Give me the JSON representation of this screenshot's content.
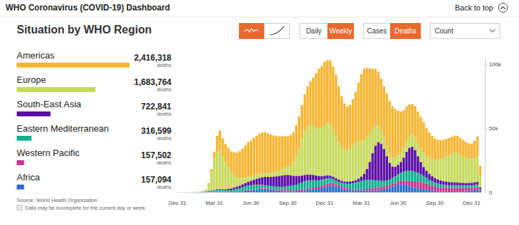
{
  "page": {
    "header": "WHO Coronavirus (COVID-19) Dashboard",
    "back_link": "Back to top",
    "toggles": [
      [
        {
          "label": "Daily"
        },
        {
          "label": "Weekly",
          "selected": true
        }
      ],
      [
        {
          "label": "Cases"
        },
        {
          "label": "Deaths",
          "selected": true
        }
      ]
    ],
    "dropdown": "Count",
    "unit": "deaths",
    "source": "Source: World Health Organization",
    "note": "Data may be incomplete for the current day or week."
  },
  "chart_data": {
    "type": "bar",
    "title": "Situation by WHO Region",
    "stacked": true,
    "legend": "left",
    "categories": [
      "Dec 31",
      null,
      null,
      null,
      null,
      null,
      null,
      null,
      null,
      null,
      null,
      null,
      null,
      "Mar 31",
      null,
      null,
      null,
      null,
      null,
      null,
      null,
      null,
      null,
      null,
      null,
      null,
      "Jun 30",
      null,
      null,
      null,
      null,
      null,
      null,
      null,
      null,
      null,
      null,
      null,
      null,
      "Sep 30",
      null,
      null,
      null,
      null,
      null,
      null,
      null,
      null,
      null,
      null,
      null,
      null,
      "Dec 31",
      null,
      null,
      null,
      null,
      null,
      null,
      null,
      null,
      null,
      null,
      null,
      null,
      "Mar 31",
      null,
      null,
      null,
      null,
      null,
      null,
      null,
      null,
      null,
      null,
      null,
      null,
      "Jun 30",
      null,
      null,
      null,
      null,
      null,
      null,
      null,
      null,
      null,
      null,
      null,
      null,
      "Sep 30",
      null,
      null,
      null,
      null,
      null,
      null,
      null,
      null,
      null,
      null,
      null,
      null,
      "Dec 31",
      null,
      null,
      null
    ],
    "ylim": [
      0,
      105000
    ],
    "yticks": [
      0,
      {
        "value": 50000,
        "label": "50k"
      },
      {
        "value": 100000,
        "label": "100k"
      }
    ],
    "series": [
      {
        "name": "Americas",
        "color": "#F6B530",
        "total": {
          "value": 2416318,
          "label": "2,416,318"
        },
        "values": [
          0,
          0,
          0,
          0,
          0,
          0,
          0,
          0,
          0,
          0,
          100,
          500,
          2500,
          6000,
          13000,
          16000,
          14000,
          14500,
          15000,
          16000,
          17500,
          19000,
          21000,
          23000,
          25000,
          27000,
          28000,
          29500,
          30500,
          31500,
          32000,
          32000,
          31000,
          30000,
          29000,
          28000,
          27000,
          26000,
          25000,
          24000,
          23500,
          23000,
          23500,
          24500,
          26000,
          28000,
          31000,
          34000,
          38000,
          43000,
          47000,
          48000,
          50000,
          49000,
          50000,
          49000,
          48000,
          44000,
          40000,
          36000,
          34000,
          34000,
          36000,
          40000,
          46000,
          52000,
          55000,
          54000,
          51000,
          47000,
          44000,
          42000,
          40000,
          40000,
          41000,
          41000,
          40000,
          38000,
          35000,
          32000,
          29000,
          27000,
          25000,
          24000,
          24500,
          25000,
          25000,
          24000,
          22000,
          20000,
          18000,
          16500,
          15500,
          14500,
          14000,
          13500,
          13500,
          13500,
          13500,
          13500,
          13000,
          12500,
          12000,
          12000,
          12000,
          13500,
          16000,
          8000
        ]
      },
      {
        "name": "Europe",
        "color": "#C6D95A",
        "total": {
          "value": 1683764,
          "label": "1,683,764"
        },
        "values": [
          0,
          0,
          0,
          0,
          0,
          0,
          0,
          0,
          100,
          300,
          1500,
          5500,
          14000,
          24000,
          29000,
          30000,
          26000,
          21000,
          17000,
          13000,
          10000,
          7500,
          6000,
          5000,
          4500,
          4000,
          3600,
          3400,
          3300,
          3200,
          3100,
          3000,
          3000,
          3100,
          3300,
          3600,
          4000,
          4600,
          5300,
          6200,
          8000,
          11000,
          16000,
          22000,
          29000,
          35000,
          38000,
          39000,
          38000,
          37000,
          37000,
          38000,
          39000,
          41000,
          40000,
          37000,
          33000,
          29000,
          26000,
          25000,
          25000,
          26000,
          28000,
          29000,
          29000,
          28000,
          27000,
          25000,
          22000,
          19000,
          16000,
          13000,
          11000,
          9000,
          8000,
          7500,
          7000,
          7000,
          7200,
          7500,
          8000,
          8500,
          9000,
          9500,
          9800,
          10000,
          10500,
          11000,
          11500,
          12500,
          13500,
          14500,
          15500,
          17000,
          18500,
          20000,
          21000,
          22000,
          23000,
          23000,
          22000,
          21000,
          20000,
          19000,
          18500,
          19000,
          19500,
          9000
        ]
      },
      {
        "name": "South-East Asia",
        "color": "#5B0EA6",
        "total": {
          "value": 722841,
          "label": "722,841"
        },
        "values": [
          0,
          0,
          0,
          0,
          0,
          0,
          0,
          0,
          0,
          0,
          0,
          100,
          200,
          300,
          500,
          600,
          700,
          900,
          1100,
          1300,
          1500,
          1700,
          1900,
          2200,
          2600,
          3000,
          3500,
          4000,
          4600,
          5300,
          6000,
          6500,
          6900,
          7200,
          7600,
          8000,
          8400,
          8800,
          9000,
          8800,
          8200,
          7500,
          6800,
          6000,
          5400,
          5000,
          4700,
          4400,
          4100,
          3700,
          3300,
          3000,
          2700,
          2400,
          2200,
          2000,
          1800,
          1700,
          1600,
          1600,
          1600,
          1700,
          1800,
          2000,
          2500,
          3300,
          5000,
          8500,
          14000,
          21000,
          27000,
          30000,
          29000,
          25000,
          19000,
          13000,
          9000,
          7500,
          7500,
          8500,
          11000,
          15000,
          18000,
          19000,
          17000,
          13000,
          9500,
          7000,
          5500,
          4500,
          4000,
          3600,
          3300,
          3000,
          2800,
          2600,
          2400,
          2300,
          2200,
          2200,
          2100,
          2100,
          2000,
          2000,
          2000,
          2100,
          2200,
          1000
        ]
      },
      {
        "name": "Eastern Mediterranean",
        "color": "#14AE90",
        "total": {
          "value": 316599,
          "label": "316,599"
        },
        "values": [
          0,
          0,
          0,
          0,
          0,
          0,
          0,
          100,
          200,
          400,
          600,
          900,
          1000,
          1000,
          1000,
          900,
          800,
          700,
          800,
          1000,
          1400,
          1800,
          2300,
          2800,
          3200,
          3500,
          3600,
          3500,
          3300,
          3000,
          2700,
          2500,
          2300,
          2200,
          2200,
          2300,
          2500,
          2700,
          2900,
          3200,
          3500,
          3800,
          4200,
          4800,
          5500,
          6100,
          6400,
          6300,
          6000,
          5500,
          5000,
          4600,
          4300,
          4000,
          3600,
          3200,
          3000,
          2900,
          3000,
          3200,
          3500,
          3900,
          4400,
          5000,
          5700,
          6300,
          6800,
          7000,
          6900,
          6500,
          6000,
          5400,
          4800,
          4400,
          4200,
          4300,
          4600,
          5000,
          5600,
          6300,
          7000,
          7500,
          7800,
          7700,
          7300,
          6700,
          6000,
          5300,
          4600,
          4000,
          3500,
          3100,
          2800,
          2600,
          2400,
          2300,
          2200,
          2100,
          2100,
          2000,
          2000,
          1900,
          1900,
          1900,
          1900,
          2000,
          2100,
          1000
        ]
      },
      {
        "name": "Western Pacific",
        "color": "#C9338F",
        "total": {
          "value": 157502,
          "label": "157,502"
        },
        "values": [
          0,
          0,
          0,
          0,
          0,
          100,
          100,
          100,
          100,
          100,
          100,
          100,
          200,
          300,
          400,
          400,
          400,
          300,
          300,
          200,
          200,
          200,
          200,
          200,
          200,
          300,
          300,
          400,
          500,
          600,
          700,
          800,
          800,
          800,
          700,
          700,
          600,
          600,
          600,
          600,
          600,
          600,
          700,
          800,
          900,
          1000,
          1100,
          1200,
          1400,
          1500,
          1600,
          1700,
          1900,
          2000,
          2000,
          1900,
          1700,
          1500,
          1300,
          1200,
          1100,
          1000,
          1000,
          1000,
          1100,
          1200,
          1300,
          1400,
          1600,
          1800,
          2000,
          2100,
          2200,
          2200,
          2100,
          2000,
          2000,
          2100,
          2300,
          2600,
          3000,
          3500,
          4000,
          4600,
          5000,
          5300,
          5400,
          5200,
          4800,
          4200,
          3600,
          3200,
          2900,
          2700,
          2600,
          2600,
          2700,
          2800,
          2900,
          2900,
          2800,
          2700,
          2500,
          2300,
          2100,
          2000,
          2000,
          900
        ]
      },
      {
        "name": "Africa",
        "color": "#2A6DCC",
        "total": {
          "value": 157094,
          "label": "157,094"
        },
        "values": [
          0,
          0,
          0,
          0,
          0,
          0,
          0,
          0,
          0,
          0,
          0,
          0,
          100,
          200,
          300,
          300,
          300,
          300,
          400,
          400,
          500,
          600,
          700,
          900,
          1100,
          1300,
          1500,
          1800,
          2000,
          2200,
          2300,
          2200,
          2000,
          1800,
          1600,
          1400,
          1200,
          1000,
          900,
          900,
          900,
          900,
          1000,
          1100,
          1200,
          1400,
          1600,
          1800,
          2000,
          2300,
          2700,
          3300,
          4000,
          4800,
          5200,
          5000,
          4500,
          3800,
          3000,
          2400,
          2000,
          1700,
          1500,
          1400,
          1300,
          1300,
          1300,
          1300,
          1200,
          1200,
          1300,
          1500,
          1800,
          2200,
          2800,
          3600,
          4500,
          5300,
          6000,
          6200,
          6000,
          5500,
          4800,
          4200,
          3600,
          3000,
          2600,
          2200,
          1900,
          1600,
          1400,
          1200,
          1000,
          900,
          800,
          700,
          600,
          600,
          500,
          500,
          500,
          600,
          800,
          1100,
          1400,
          1600,
          1700,
          800
        ]
      }
    ]
  }
}
